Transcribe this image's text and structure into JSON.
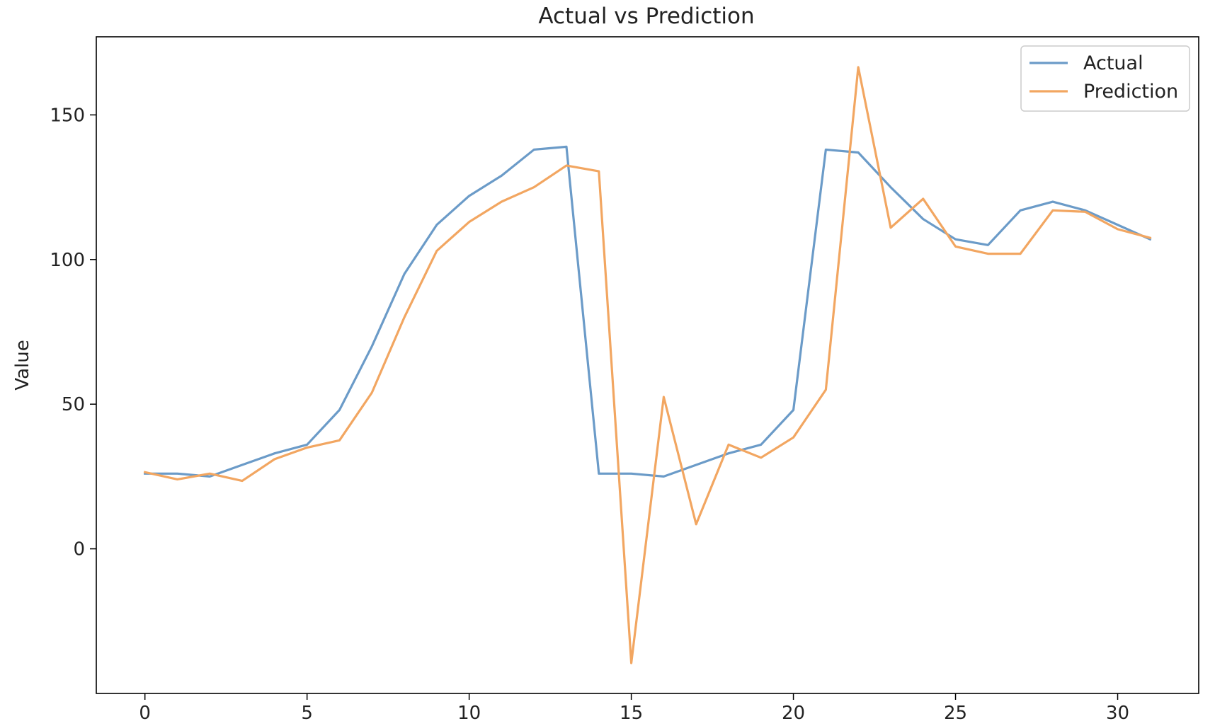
{
  "chart_data": {
    "type": "line",
    "title": "Actual vs Prediction",
    "xlabel": "",
    "ylabel": "Value",
    "xlim": [
      -1.5,
      32.5
    ],
    "ylim": [
      -50,
      177
    ],
    "xticks": [
      0,
      5,
      10,
      15,
      20,
      25,
      30
    ],
    "yticks": [
      0,
      50,
      100,
      150
    ],
    "grid": false,
    "legend_position": "top-right",
    "x": [
      0,
      1,
      2,
      3,
      4,
      5,
      6,
      7,
      8,
      9,
      10,
      11,
      12,
      13,
      14,
      15,
      16,
      17,
      18,
      19,
      20,
      21,
      22,
      23,
      24,
      25,
      26,
      27,
      28,
      29,
      30,
      31
    ],
    "series": [
      {
        "name": "Actual",
        "color": "#6b9bc8",
        "values": [
          26,
          26,
          25,
          29,
          33,
          36,
          48,
          70,
          95,
          112,
          122,
          129,
          138,
          139,
          26,
          26,
          25,
          29,
          33,
          36,
          48,
          138,
          137,
          125,
          114,
          107,
          105,
          117,
          120,
          117,
          112,
          107
        ]
      },
      {
        "name": "Prediction",
        "color": "#f2a661",
        "values": [
          26.5,
          24,
          26,
          23.5,
          31,
          35,
          37.5,
          54,
          80,
          103,
          113,
          120,
          125,
          132.5,
          130.5,
          -39.5,
          52.5,
          8.5,
          36,
          31.5,
          38.5,
          55,
          166.5,
          111,
          121,
          104.5,
          102,
          102,
          117,
          116.5,
          110.5,
          107.5
        ]
      }
    ]
  }
}
